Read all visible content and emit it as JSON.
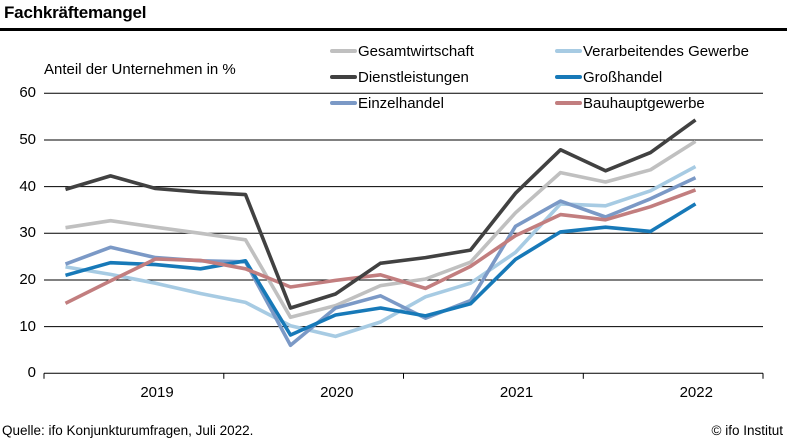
{
  "title": "Fachkräftemangel",
  "y_axis_label": "Anteil der Unternehmen in %",
  "footer": {
    "source": "Quelle: ifo Konjunkturumfragen, Juli 2022.",
    "copyright": "© ifo Institut"
  },
  "colors": {
    "title_rule": "#000000",
    "grid": "#000000",
    "axis": "#000000",
    "gesamtwirtschaft": "#c0c0c0",
    "dienstleistungen": "#414141",
    "einzelhandel": "#7b99c6",
    "verarbeitendes_gewerbe": "#a7cbe3",
    "grosshandel": "#1779b8",
    "bauhauptgewerbe": "#c27e7f"
  },
  "legend": {
    "column1": [
      0,
      1,
      2
    ],
    "column2": [
      3,
      4,
      5
    ]
  },
  "chart_data": {
    "type": "line",
    "title": "Fachkräftemangel",
    "ylabel": "Anteil der Unternehmen in %",
    "ylim": [
      0,
      60
    ],
    "yticks": [
      0,
      10,
      20,
      30,
      40,
      50,
      60
    ],
    "grid": "horizontal",
    "legend_position": "top",
    "x_year_labels": [
      "2019",
      "2020",
      "2021",
      "2022"
    ],
    "x": [
      "2019-Q1",
      "2019-Q2",
      "2019-Q3",
      "2019-Q4",
      "2020-Q1",
      "2020-Q2",
      "2020-Q3",
      "2020-Q4",
      "2021-Q1",
      "2021-Q2",
      "2021-Q3",
      "2021-Q4",
      "2022-Q1",
      "2022-Q2",
      "2022-Q3"
    ],
    "series": [
      {
        "name": "Gesamtwirtschaft",
        "color": "#c0c0c0",
        "values": [
          31.2,
          32.7,
          31.3,
          30.0,
          28.6,
          12.0,
          14.5,
          18.8,
          20.2,
          23.8,
          34.4,
          43.0,
          41.0,
          43.6,
          49.7
        ]
      },
      {
        "name": "Dienstleistungen",
        "color": "#414141",
        "values": [
          39.4,
          42.3,
          39.6,
          38.8,
          38.3,
          14.0,
          17.0,
          23.6,
          24.8,
          26.4,
          38.6,
          47.9,
          43.4,
          47.3,
          54.3
        ]
      },
      {
        "name": "Einzelhandel",
        "color": "#7b99c6",
        "values": [
          23.4,
          27.0,
          24.8,
          24.1,
          23.9,
          6.0,
          14.0,
          16.6,
          11.8,
          15.6,
          31.5,
          36.9,
          33.5,
          37.4,
          41.9
        ]
      },
      {
        "name": "Verarbeitendes Gewerbe",
        "color": "#a7cbe3",
        "values": [
          22.8,
          21.2,
          19.3,
          17.1,
          15.2,
          10.2,
          7.9,
          11.0,
          16.4,
          19.3,
          25.9,
          36.3,
          35.9,
          39.1,
          44.3
        ]
      },
      {
        "name": "Großhandel",
        "color": "#1779b8",
        "values": [
          21.0,
          23.7,
          23.3,
          22.4,
          24.1,
          8.2,
          12.5,
          14.0,
          12.3,
          14.9,
          24.4,
          30.3,
          31.3,
          30.4,
          36.3
        ]
      },
      {
        "name": "Bauhauptgewerbe",
        "color": "#c27e7f",
        "values": [
          15.0,
          19.8,
          24.5,
          24.2,
          22.4,
          18.5,
          19.9,
          21.1,
          18.2,
          22.9,
          29.5,
          34.0,
          32.9,
          35.7,
          39.3
        ]
      }
    ]
  }
}
